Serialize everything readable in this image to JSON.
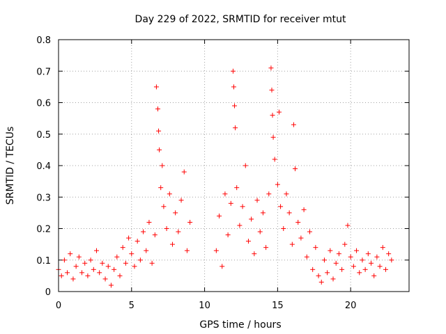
{
  "chart_data": {
    "type": "scatter",
    "title": "Day 229 of 2022, SRMTID for receiver mtut",
    "xlabel": "GPS time / hours",
    "ylabel": "SRMTID / TECUs",
    "xlim": [
      0,
      24
    ],
    "ylim": [
      0,
      0.8
    ],
    "xticks": [
      0,
      5,
      10,
      15,
      20
    ],
    "xtick_labels": [
      "0",
      "5",
      "10",
      "15",
      "20"
    ],
    "yticks": [
      0,
      0.1,
      0.2,
      0.3,
      0.4,
      0.5,
      0.6,
      0.7,
      0.8
    ],
    "ytick_labels": [
      "0",
      "0.1",
      "0.2",
      "0.3",
      "0.4",
      "0.5",
      "0.6",
      "0.7",
      "0.8"
    ],
    "grid": true,
    "marker": "+",
    "color": "#ff0000",
    "series": [
      {
        "name": "SRMTID",
        "points": [
          [
            0.0,
            0.07
          ],
          [
            0.2,
            0.05
          ],
          [
            0.4,
            0.1
          ],
          [
            0.6,
            0.06
          ],
          [
            0.8,
            0.12
          ],
          [
            1.0,
            0.04
          ],
          [
            1.2,
            0.08
          ],
          [
            1.4,
            0.11
          ],
          [
            1.6,
            0.06
          ],
          [
            1.8,
            0.09
          ],
          [
            2.0,
            0.05
          ],
          [
            2.2,
            0.1
          ],
          [
            2.4,
            0.07
          ],
          [
            2.6,
            0.13
          ],
          [
            2.8,
            0.06
          ],
          [
            3.0,
            0.09
          ],
          [
            3.2,
            0.04
          ],
          [
            3.4,
            0.08
          ],
          [
            3.6,
            0.02
          ],
          [
            3.8,
            0.07
          ],
          [
            4.0,
            0.11
          ],
          [
            4.2,
            0.05
          ],
          [
            4.4,
            0.14
          ],
          [
            4.6,
            0.09
          ],
          [
            4.8,
            0.17
          ],
          [
            5.0,
            0.12
          ],
          [
            5.2,
            0.08
          ],
          [
            5.4,
            0.16
          ],
          [
            5.6,
            0.1
          ],
          [
            5.8,
            0.19
          ],
          [
            6.0,
            0.13
          ],
          [
            6.2,
            0.22
          ],
          [
            6.4,
            0.09
          ],
          [
            6.6,
            0.18
          ],
          [
            6.7,
            0.65
          ],
          [
            6.8,
            0.58
          ],
          [
            6.85,
            0.51
          ],
          [
            6.9,
            0.45
          ],
          [
            7.0,
            0.33
          ],
          [
            7.1,
            0.4
          ],
          [
            7.2,
            0.27
          ],
          [
            7.4,
            0.2
          ],
          [
            7.6,
            0.31
          ],
          [
            7.8,
            0.15
          ],
          [
            8.0,
            0.25
          ],
          [
            8.2,
            0.19
          ],
          [
            8.4,
            0.29
          ],
          [
            8.6,
            0.38
          ],
          [
            8.8,
            0.13
          ],
          [
            9.0,
            0.22
          ],
          [
            10.8,
            0.13
          ],
          [
            11.0,
            0.24
          ],
          [
            11.2,
            0.08
          ],
          [
            11.4,
            0.31
          ],
          [
            11.6,
            0.18
          ],
          [
            11.8,
            0.28
          ],
          [
            11.95,
            0.7
          ],
          [
            12.0,
            0.65
          ],
          [
            12.05,
            0.59
          ],
          [
            12.1,
            0.52
          ],
          [
            12.2,
            0.33
          ],
          [
            12.4,
            0.21
          ],
          [
            12.6,
            0.27
          ],
          [
            12.8,
            0.4
          ],
          [
            13.0,
            0.16
          ],
          [
            13.2,
            0.23
          ],
          [
            13.4,
            0.12
          ],
          [
            13.6,
            0.29
          ],
          [
            13.8,
            0.19
          ],
          [
            14.0,
            0.25
          ],
          [
            14.2,
            0.14
          ],
          [
            14.4,
            0.31
          ],
          [
            14.55,
            0.71
          ],
          [
            14.6,
            0.64
          ],
          [
            14.65,
            0.56
          ],
          [
            14.7,
            0.49
          ],
          [
            14.8,
            0.42
          ],
          [
            15.0,
            0.34
          ],
          [
            15.1,
            0.57
          ],
          [
            15.2,
            0.27
          ],
          [
            15.4,
            0.2
          ],
          [
            15.6,
            0.31
          ],
          [
            15.8,
            0.25
          ],
          [
            16.0,
            0.15
          ],
          [
            16.1,
            0.53
          ],
          [
            16.2,
            0.39
          ],
          [
            16.4,
            0.22
          ],
          [
            16.6,
            0.17
          ],
          [
            16.8,
            0.26
          ],
          [
            17.0,
            0.11
          ],
          [
            17.2,
            0.19
          ],
          [
            17.4,
            0.07
          ],
          [
            17.6,
            0.14
          ],
          [
            17.8,
            0.05
          ],
          [
            18.0,
            0.03
          ],
          [
            18.2,
            0.1
          ],
          [
            18.4,
            0.06
          ],
          [
            18.6,
            0.13
          ],
          [
            18.8,
            0.04
          ],
          [
            19.0,
            0.09
          ],
          [
            19.2,
            0.12
          ],
          [
            19.4,
            0.07
          ],
          [
            19.6,
            0.15
          ],
          [
            19.8,
            0.21
          ],
          [
            20.0,
            0.11
          ],
          [
            20.2,
            0.08
          ],
          [
            20.4,
            0.13
          ],
          [
            20.6,
            0.06
          ],
          [
            20.8,
            0.1
          ],
          [
            21.0,
            0.07
          ],
          [
            21.2,
            0.12
          ],
          [
            21.4,
            0.09
          ],
          [
            21.6,
            0.05
          ],
          [
            21.8,
            0.11
          ],
          [
            22.0,
            0.08
          ],
          [
            22.2,
            0.14
          ],
          [
            22.4,
            0.07
          ],
          [
            22.6,
            0.12
          ],
          [
            22.8,
            0.1
          ]
        ]
      }
    ]
  }
}
